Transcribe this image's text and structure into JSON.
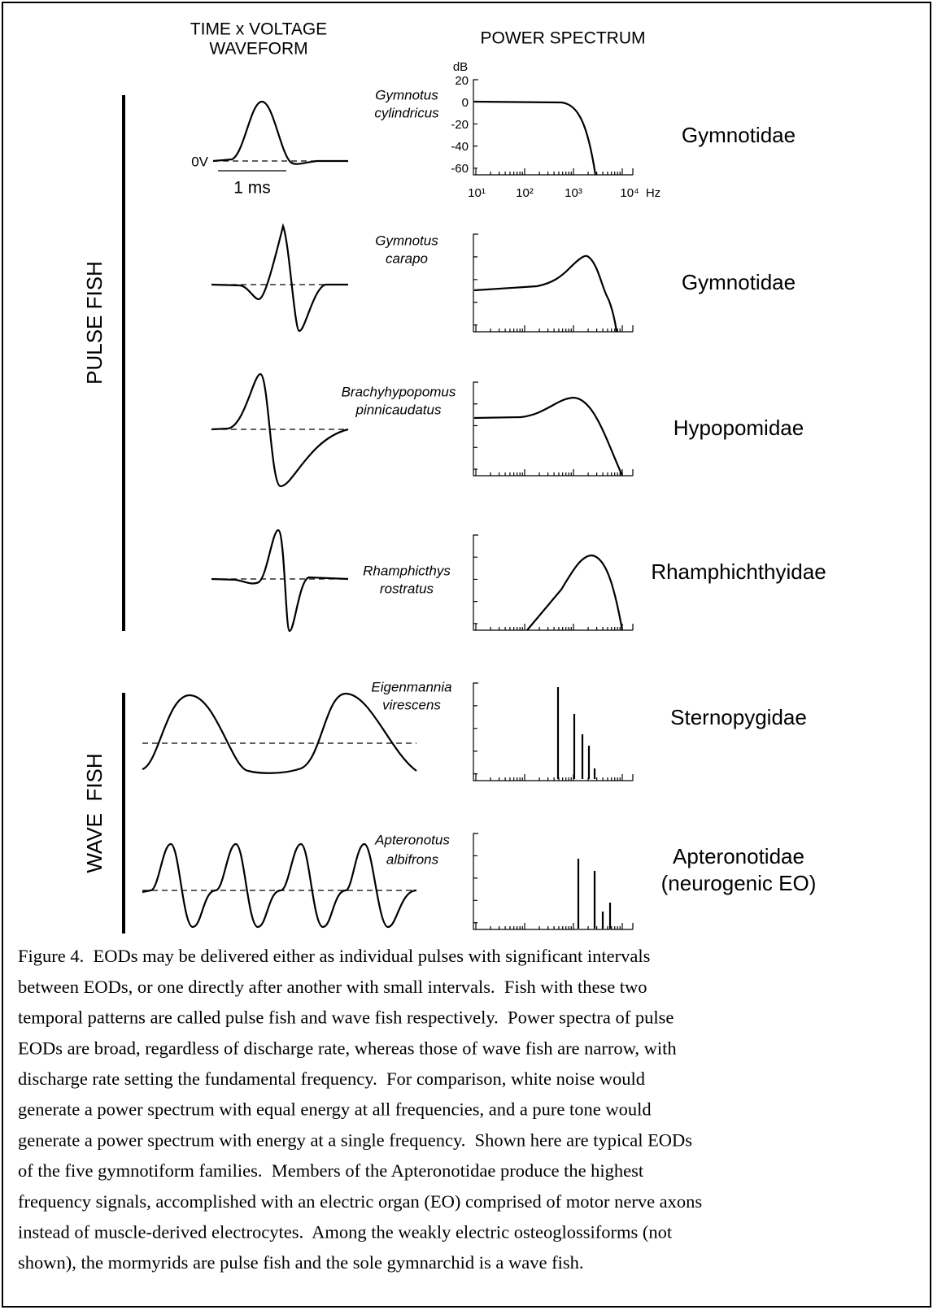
{
  "header": {
    "waveform": [
      "TIME x VOLTAGE",
      "WAVEFORM"
    ],
    "spectrum": "POWER SPECTRUM"
  },
  "groups": {
    "pulse": "PULSE FISH",
    "wave": "WAVE  FISH"
  },
  "first_row_axes": {
    "unit_y": "dB",
    "yticks": [
      "20",
      "0",
      "-20",
      "-40",
      "-60"
    ],
    "xticks": [
      "10¹",
      "10²",
      "10³",
      "10⁴"
    ],
    "unit_x": "Hz",
    "zero_label": "0V",
    "scale_label": "1 ms"
  },
  "rows": [
    {
      "species": [
        "Gymnotus",
        "cylindricus"
      ],
      "family": [
        "Gymnotidae"
      ]
    },
    {
      "species": [
        "Gymnotus",
        "carapo"
      ],
      "family": [
        "Gymnotidae"
      ]
    },
    {
      "species": [
        "Brachyhypopomus",
        "pinnicaudatus"
      ],
      "family": [
        "Hypopomidae"
      ]
    },
    {
      "species": [
        "Rhamphicthys",
        "rostratus"
      ],
      "family": [
        "Rhamphichthyidae"
      ]
    },
    {
      "species": [
        "Eigenmannia",
        "virescens"
      ],
      "family": [
        "Sternopygidae"
      ]
    },
    {
      "species": [
        "Apteronotus",
        "albifrons"
      ],
      "family": [
        "Apteronotidae",
        "(neurogenic EO)"
      ]
    }
  ],
  "caption": [
    "Figure 4.  EODs may be delivered either as individual pulses with significant intervals",
    "between EODs, or one directly after another with small intervals.  Fish with these two",
    "temporal patterns are called pulse fish and wave fish respectively.  Power spectra of pulse",
    "EODs are broad, regardless of discharge rate, whereas those of wave fish are narrow, with",
    "discharge rate setting the fundamental frequency.  For comparison, white noise would",
    "generate a power spectrum with equal energy at all frequencies, and a pure tone would",
    "generate a power spectrum with energy at a single frequency.  Shown here are typical EODs",
    "of the five gymnotiform families.  Members of the Apteronotidae produce the highest",
    "frequency signals, accomplished with an electric organ (EO) comprised of motor nerve axons",
    "instead of muscle-derived electrocytes.  Among the weakly electric osteoglossiforms (not",
    "shown), the mormyrids are pulse fish and the sole gymnarchid is a wave fish."
  ]
}
